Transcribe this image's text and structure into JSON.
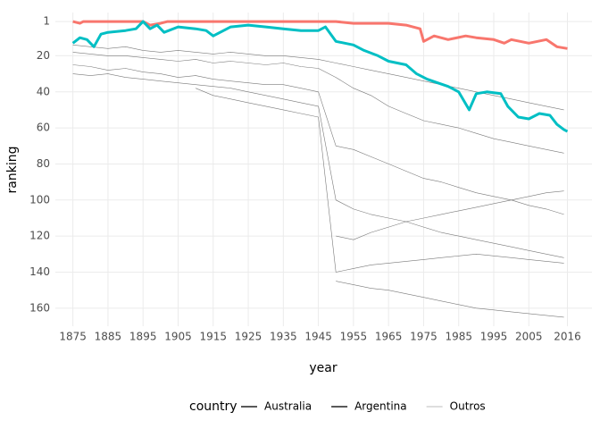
{
  "chart_data": {
    "type": "line",
    "x_label": "year",
    "y_label": "ranking",
    "legend_title": "country",
    "xlim": [
      1870,
      2023
    ],
    "xticks": [
      1875,
      1885,
      1895,
      1905,
      1915,
      1925,
      1935,
      1945,
      1955,
      1965,
      1975,
      1985,
      1995,
      2005,
      2016
    ],
    "ylim": [
      170,
      -4
    ],
    "yticks": [
      1,
      20,
      40,
      60,
      80,
      100,
      120,
      140,
      160
    ],
    "grid": true,
    "legend_position": "bottom",
    "x": [
      1875,
      1880,
      1885,
      1890,
      1895,
      1900,
      1905,
      1910,
      1915,
      1920,
      1925,
      1930,
      1935,
      1940,
      1945,
      1950,
      1955,
      1960,
      1965,
      1970,
      1975,
      1980,
      1985,
      1990,
      1995,
      2000,
      2005,
      2010,
      2015
    ],
    "series": [
      {
        "name": "Australia",
        "color": "#f8766d",
        "x": [
          1875,
          1877,
          1878,
          1895,
          1897,
          1900,
          1902,
          1920,
          1950,
          1955,
          1965,
          1970,
          1974,
          1975,
          1978,
          1982,
          1987,
          1990,
          1995,
          1998,
          2000,
          2005,
          2010,
          2013,
          2016
        ],
        "values": [
          1,
          2,
          1,
          1,
          3,
          2,
          1,
          1,
          1,
          2,
          2,
          3,
          5,
          12,
          9,
          11,
          9,
          10,
          11,
          13,
          11,
          13,
          11,
          15,
          16
        ]
      },
      {
        "name": "Argentina",
        "color": "#00bfc4",
        "x": [
          1875,
          1877,
          1879,
          1881,
          1883,
          1885,
          1890,
          1893,
          1895,
          1897,
          1899,
          1901,
          1905,
          1910,
          1913,
          1915,
          1920,
          1925,
          1930,
          1935,
          1940,
          1945,
          1947,
          1950,
          1955,
          1958,
          1962,
          1965,
          1970,
          1973,
          1976,
          1979,
          1982,
          1985,
          1988,
          1990,
          1993,
          1997,
          1999,
          2002,
          2005,
          2008,
          2011,
          2013,
          2015,
          2016
        ],
        "values": [
          13,
          10,
          11,
          15,
          8,
          7,
          6,
          5,
          1,
          5,
          3,
          7,
          4,
          5,
          6,
          9,
          4,
          3,
          4,
          5,
          6,
          6,
          4,
          12,
          14,
          17,
          20,
          23,
          25,
          30,
          33,
          35,
          37,
          40,
          50,
          41,
          40,
          41,
          48,
          54,
          55,
          52,
          53,
          58,
          61,
          62
        ]
      },
      {
        "name": "Outros",
        "color": "#bdbdbd",
        "lines": [
          [
            18,
            19,
            20,
            20,
            21,
            22,
            23,
            22,
            24,
            23,
            24,
            25,
            24,
            26,
            27,
            32,
            38,
            42,
            48,
            52,
            56,
            58,
            60,
            63,
            66,
            68,
            70,
            72,
            74
          ],
          [
            25,
            26,
            28,
            27,
            29,
            30,
            32,
            31,
            33,
            34,
            35,
            36,
            36,
            38,
            40,
            70,
            72,
            76,
            80,
            84,
            88,
            90,
            93,
            96,
            98,
            100,
            103,
            105,
            108
          ],
          [
            30,
            31,
            30,
            32,
            33,
            34,
            35,
            36,
            37,
            38,
            40,
            42,
            44,
            46,
            48,
            100,
            105,
            108,
            110,
            112,
            115,
            118,
            120,
            122,
            124,
            126,
            128,
            130,
            132
          ],
          [
            null,
            null,
            null,
            null,
            null,
            null,
            null,
            38,
            42,
            44,
            46,
            48,
            50,
            52,
            54,
            140,
            138,
            136,
            135,
            134,
            133,
            132,
            131,
            130,
            131,
            132,
            133,
            134,
            135
          ],
          [
            null,
            null,
            null,
            null,
            null,
            null,
            null,
            null,
            null,
            null,
            null,
            null,
            null,
            null,
            null,
            145,
            147,
            149,
            150,
            152,
            154,
            156,
            158,
            160,
            161,
            162,
            163,
            164,
            165
          ],
          [
            null,
            null,
            null,
            null,
            null,
            null,
            null,
            null,
            null,
            null,
            null,
            null,
            null,
            null,
            null,
            120,
            122,
            118,
            115,
            112,
            110,
            108,
            106,
            104,
            102,
            100,
            98,
            96,
            95
          ],
          [
            14,
            15,
            16,
            15,
            17,
            18,
            17,
            18,
            19,
            18,
            19,
            20,
            20,
            21,
            22,
            24,
            26,
            28,
            30,
            32,
            34,
            36,
            38,
            40,
            42,
            44,
            46,
            48,
            50
          ]
        ]
      }
    ]
  }
}
